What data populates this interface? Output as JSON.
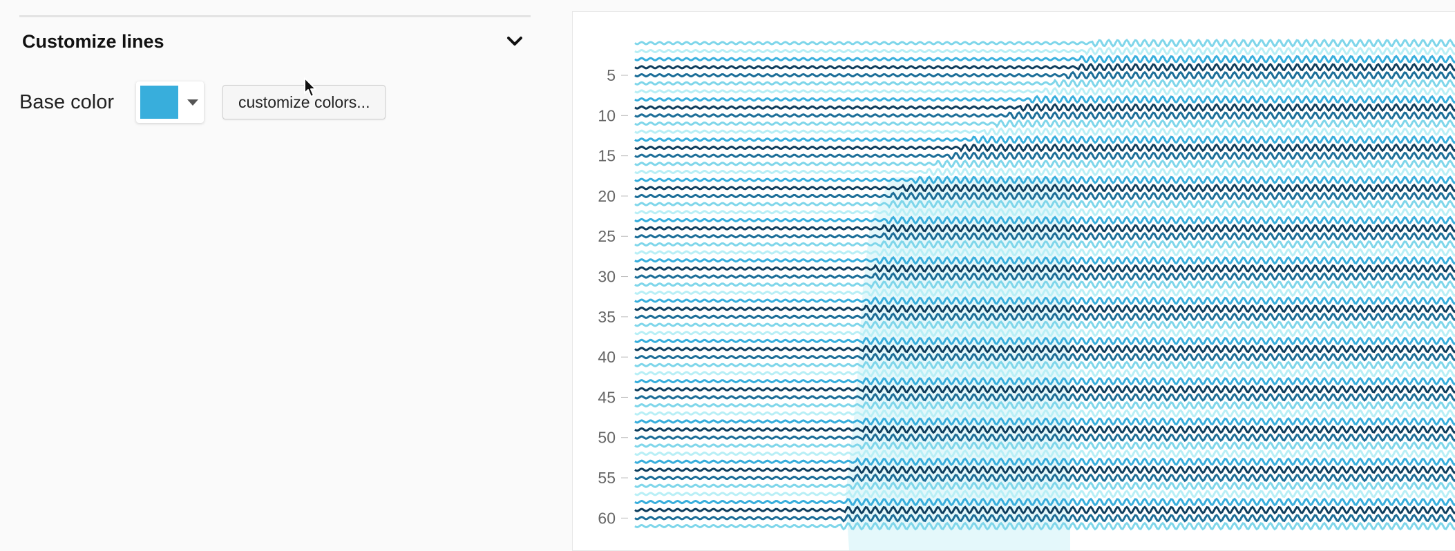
{
  "sidebar": {
    "section_title": "Customize lines",
    "expand_icon": "chevron-down-icon",
    "base_color_label": "Base color",
    "base_color": "#38aedc",
    "dropdown_icon": "caret-down-icon",
    "customize_button_label": "customize colors..."
  },
  "colors": {
    "darkest": "#0e3e5e",
    "dark": "#1c6e98",
    "base": "#38aedc",
    "light": "#7fd6ea",
    "lightest": "#b8eff6"
  },
  "chart_data": {
    "type": "line",
    "yticks": [
      "5",
      "10",
      "15",
      "20",
      "25",
      "30",
      "35",
      "40",
      "45",
      "50",
      "55",
      "60"
    ],
    "tick_values": [
      5,
      10,
      15,
      20,
      25,
      30,
      35,
      40,
      45,
      50,
      55,
      60
    ],
    "ylim": [
      1,
      61
    ],
    "series_count": 61,
    "line_style": "wavy"
  }
}
